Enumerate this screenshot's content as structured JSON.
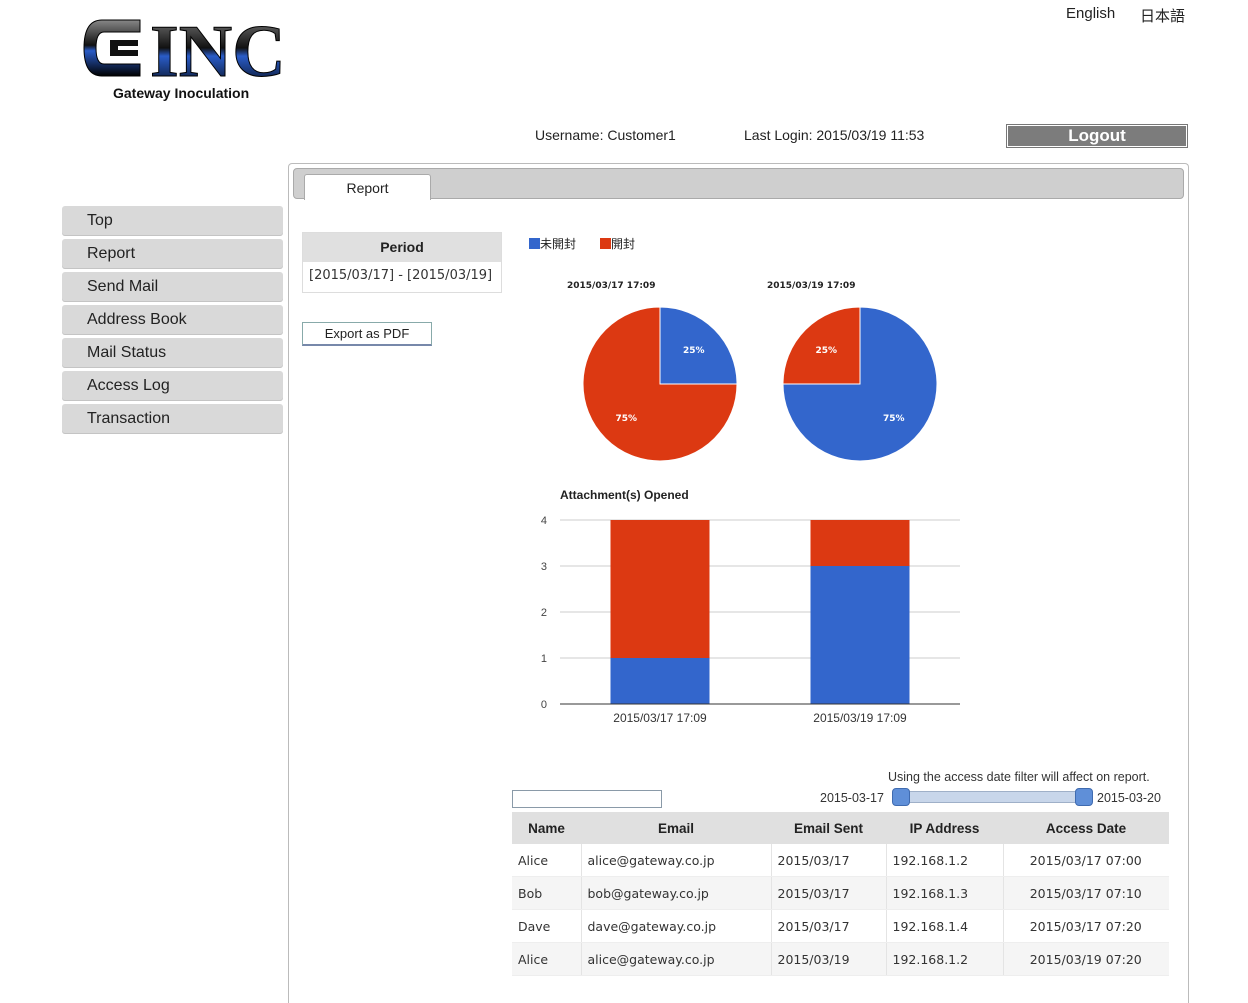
{
  "header": {
    "logo_text": "INC",
    "logo_subtitle": "Gateway Inoculation",
    "lang_english": "English",
    "lang_japanese": "日本語",
    "username": "Username: Customer1",
    "last_login": "Last Login: 2015/03/19 11:53",
    "logout_label": "Logout"
  },
  "sidebar": {
    "items": [
      {
        "label": "Top"
      },
      {
        "label": "Report"
      },
      {
        "label": "Send Mail"
      },
      {
        "label": "Address Book"
      },
      {
        "label": "Mail Status"
      },
      {
        "label": "Access Log"
      },
      {
        "label": "Transaction"
      }
    ]
  },
  "tabs": [
    {
      "label": "Report"
    }
  ],
  "period": {
    "header": "Period",
    "value": "[2015/03/17] - [2015/03/19]"
  },
  "export_label": "Export as PDF",
  "colors": {
    "unopened": "#3366cc",
    "opened": "#dc3912"
  },
  "chart_data": [
    {
      "type": "pie",
      "title": "2015/03/17 17:09",
      "legend": [
        "未開封",
        "開封"
      ],
      "legend_position": "top",
      "slices": [
        {
          "name": "未開封",
          "value": 25,
          "label": "25%"
        },
        {
          "name": "開封",
          "value": 75,
          "label": "75%"
        }
      ]
    },
    {
      "type": "pie",
      "title": "2015/03/19 17:09",
      "legend": [
        "未開封",
        "開封"
      ],
      "legend_position": "top",
      "slices": [
        {
          "name": "未開封",
          "value": 75,
          "label": "75%"
        },
        {
          "name": "開封",
          "value": 25,
          "label": "25%"
        }
      ]
    },
    {
      "type": "bar",
      "stacked": true,
      "title": "Attachment(s) Opened",
      "categories": [
        "2015/03/17 17:09",
        "2015/03/19 17:09"
      ],
      "series": [
        {
          "name": "未開封",
          "values": [
            1,
            3
          ]
        },
        {
          "name": "開封",
          "values": [
            3,
            1
          ]
        }
      ],
      "ylim": [
        0,
        4
      ],
      "yticks": [
        "0",
        "1",
        "2",
        "3",
        "4"
      ],
      "grid": true
    }
  ],
  "filter": {
    "note": "Using the access date filter will affect on report.",
    "from": "2015-03-17",
    "to": "2015-03-20",
    "search_value": ""
  },
  "table": {
    "columns": [
      "Name",
      "Email",
      "Email Sent",
      "IP Address",
      "Access Date"
    ],
    "rows": [
      [
        "Alice",
        "alice@gateway.co.jp",
        "2015/03/17",
        "192.168.1.2",
        "2015/03/17 07:00"
      ],
      [
        "Bob",
        "bob@gateway.co.jp",
        "2015/03/17",
        "192.168.1.3",
        "2015/03/17 07:10"
      ],
      [
        "Dave",
        "dave@gateway.co.jp",
        "2015/03/17",
        "192.168.1.4",
        "2015/03/17 07:20"
      ],
      [
        "Alice",
        "alice@gateway.co.jp",
        "2015/03/19",
        "192.168.1.2",
        "2015/03/19 07:20"
      ]
    ]
  }
}
